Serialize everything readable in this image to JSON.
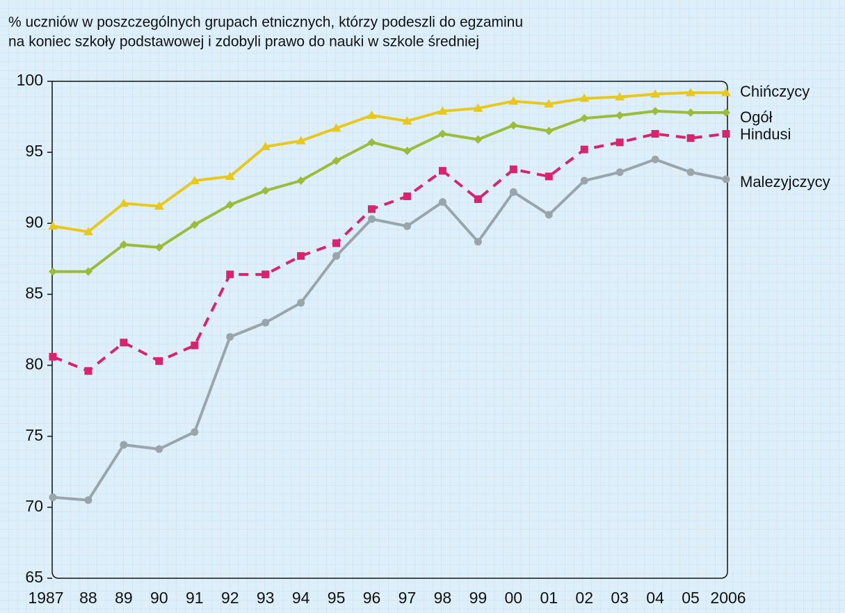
{
  "chart_data": {
    "type": "line",
    "title": [
      "% uczniów w poszczególnych grupach etnicznych, którzy podeszli do egzaminu",
      "na koniec szkoły podstawowej i zdobyli prawo do nauki w szkole średniej"
    ],
    "categories": [
      "1987",
      "88",
      "89",
      "90",
      "91",
      "92",
      "93",
      "94",
      "95",
      "96",
      "97",
      "98",
      "99",
      "00",
      "01",
      "02",
      "03",
      "04",
      "05",
      "2006"
    ],
    "ylim": [
      65,
      100
    ],
    "yticks": [
      65,
      70,
      75,
      80,
      85,
      90,
      95,
      100
    ],
    "series": [
      {
        "name": "Chińczycy",
        "color": "#e8c81e",
        "marker": "triangle",
        "values": [
          89.8,
          89.4,
          91.4,
          91.2,
          93.0,
          93.3,
          95.4,
          95.8,
          96.7,
          97.6,
          97.2,
          97.9,
          98.1,
          98.6,
          98.4,
          98.8,
          98.9,
          99.1,
          99.2,
          99.2
        ]
      },
      {
        "name": "Ogół",
        "color": "#9bbb3a",
        "marker": "diamond",
        "values": [
          86.6,
          86.6,
          88.5,
          88.3,
          89.9,
          91.3,
          92.3,
          93.0,
          94.4,
          95.7,
          95.1,
          96.3,
          95.9,
          96.9,
          96.5,
          97.4,
          97.6,
          97.9,
          97.8,
          97.8
        ]
      },
      {
        "name": "Hindusi",
        "color": "#d6246e",
        "marker": "square",
        "dashed": true,
        "values": [
          80.6,
          79.6,
          81.6,
          80.3,
          81.4,
          86.4,
          86.4,
          87.7,
          88.6,
          91.0,
          91.9,
          93.7,
          91.7,
          93.8,
          93.3,
          95.2,
          95.7,
          96.3,
          96.0,
          96.3
        ]
      },
      {
        "name": "Malezyjczycy",
        "color": "#9aa5ab",
        "marker": "circle",
        "values": [
          70.7,
          70.5,
          74.4,
          74.1,
          75.3,
          82.0,
          83.0,
          84.4,
          87.7,
          90.3,
          89.8,
          91.5,
          88.7,
          92.2,
          90.6,
          93.0,
          93.6,
          94.5,
          93.6,
          93.1
        ]
      }
    ]
  }
}
